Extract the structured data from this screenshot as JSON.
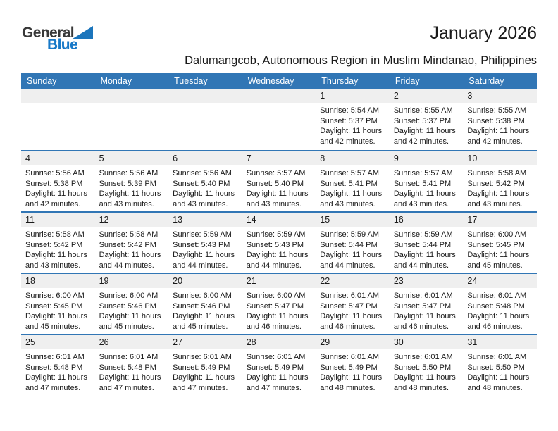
{
  "logo": {
    "part1": "General",
    "part2": "Blue"
  },
  "header": {
    "title": "January 2026",
    "subtitle": "Dalumangcob, Autonomous Region in Muslim Mindanao, Philippines"
  },
  "colors": {
    "accent_blue": "#3176B5",
    "band_gray": "#EFEFEF",
    "logo_dark": "#383838",
    "logo_blue": "#1879C8",
    "header_text": "#FFFFFF"
  },
  "calendar": {
    "weekday_headers": [
      "Sunday",
      "Monday",
      "Tuesday",
      "Wednesday",
      "Thursday",
      "Friday",
      "Saturday"
    ],
    "weeks": [
      [
        {
          "day": "",
          "sunrise": "",
          "sunset": "",
          "daylight1": "",
          "daylight2": ""
        },
        {
          "day": "",
          "sunrise": "",
          "sunset": "",
          "daylight1": "",
          "daylight2": ""
        },
        {
          "day": "",
          "sunrise": "",
          "sunset": "",
          "daylight1": "",
          "daylight2": ""
        },
        {
          "day": "",
          "sunrise": "",
          "sunset": "",
          "daylight1": "",
          "daylight2": ""
        },
        {
          "day": "1",
          "sunrise": "Sunrise: 5:54 AM",
          "sunset": "Sunset: 5:37 PM",
          "daylight1": "Daylight: 11 hours",
          "daylight2": "and 42 minutes."
        },
        {
          "day": "2",
          "sunrise": "Sunrise: 5:55 AM",
          "sunset": "Sunset: 5:37 PM",
          "daylight1": "Daylight: 11 hours",
          "daylight2": "and 42 minutes."
        },
        {
          "day": "3",
          "sunrise": "Sunrise: 5:55 AM",
          "sunset": "Sunset: 5:38 PM",
          "daylight1": "Daylight: 11 hours",
          "daylight2": "and 42 minutes."
        }
      ],
      [
        {
          "day": "4",
          "sunrise": "Sunrise: 5:56 AM",
          "sunset": "Sunset: 5:38 PM",
          "daylight1": "Daylight: 11 hours",
          "daylight2": "and 42 minutes."
        },
        {
          "day": "5",
          "sunrise": "Sunrise: 5:56 AM",
          "sunset": "Sunset: 5:39 PM",
          "daylight1": "Daylight: 11 hours",
          "daylight2": "and 43 minutes."
        },
        {
          "day": "6",
          "sunrise": "Sunrise: 5:56 AM",
          "sunset": "Sunset: 5:40 PM",
          "daylight1": "Daylight: 11 hours",
          "daylight2": "and 43 minutes."
        },
        {
          "day": "7",
          "sunrise": "Sunrise: 5:57 AM",
          "sunset": "Sunset: 5:40 PM",
          "daylight1": "Daylight: 11 hours",
          "daylight2": "and 43 minutes."
        },
        {
          "day": "8",
          "sunrise": "Sunrise: 5:57 AM",
          "sunset": "Sunset: 5:41 PM",
          "daylight1": "Daylight: 11 hours",
          "daylight2": "and 43 minutes."
        },
        {
          "day": "9",
          "sunrise": "Sunrise: 5:57 AM",
          "sunset": "Sunset: 5:41 PM",
          "daylight1": "Daylight: 11 hours",
          "daylight2": "and 43 minutes."
        },
        {
          "day": "10",
          "sunrise": "Sunrise: 5:58 AM",
          "sunset": "Sunset: 5:42 PM",
          "daylight1": "Daylight: 11 hours",
          "daylight2": "and 43 minutes."
        }
      ],
      [
        {
          "day": "11",
          "sunrise": "Sunrise: 5:58 AM",
          "sunset": "Sunset: 5:42 PM",
          "daylight1": "Daylight: 11 hours",
          "daylight2": "and 43 minutes."
        },
        {
          "day": "12",
          "sunrise": "Sunrise: 5:58 AM",
          "sunset": "Sunset: 5:42 PM",
          "daylight1": "Daylight: 11 hours",
          "daylight2": "and 44 minutes."
        },
        {
          "day": "13",
          "sunrise": "Sunrise: 5:59 AM",
          "sunset": "Sunset: 5:43 PM",
          "daylight1": "Daylight: 11 hours",
          "daylight2": "and 44 minutes."
        },
        {
          "day": "14",
          "sunrise": "Sunrise: 5:59 AM",
          "sunset": "Sunset: 5:43 PM",
          "daylight1": "Daylight: 11 hours",
          "daylight2": "and 44 minutes."
        },
        {
          "day": "15",
          "sunrise": "Sunrise: 5:59 AM",
          "sunset": "Sunset: 5:44 PM",
          "daylight1": "Daylight: 11 hours",
          "daylight2": "and 44 minutes."
        },
        {
          "day": "16",
          "sunrise": "Sunrise: 5:59 AM",
          "sunset": "Sunset: 5:44 PM",
          "daylight1": "Daylight: 11 hours",
          "daylight2": "and 44 minutes."
        },
        {
          "day": "17",
          "sunrise": "Sunrise: 6:00 AM",
          "sunset": "Sunset: 5:45 PM",
          "daylight1": "Daylight: 11 hours",
          "daylight2": "and 45 minutes."
        }
      ],
      [
        {
          "day": "18",
          "sunrise": "Sunrise: 6:00 AM",
          "sunset": "Sunset: 5:45 PM",
          "daylight1": "Daylight: 11 hours",
          "daylight2": "and 45 minutes."
        },
        {
          "day": "19",
          "sunrise": "Sunrise: 6:00 AM",
          "sunset": "Sunset: 5:46 PM",
          "daylight1": "Daylight: 11 hours",
          "daylight2": "and 45 minutes."
        },
        {
          "day": "20",
          "sunrise": "Sunrise: 6:00 AM",
          "sunset": "Sunset: 5:46 PM",
          "daylight1": "Daylight: 11 hours",
          "daylight2": "and 45 minutes."
        },
        {
          "day": "21",
          "sunrise": "Sunrise: 6:00 AM",
          "sunset": "Sunset: 5:47 PM",
          "daylight1": "Daylight: 11 hours",
          "daylight2": "and 46 minutes."
        },
        {
          "day": "22",
          "sunrise": "Sunrise: 6:01 AM",
          "sunset": "Sunset: 5:47 PM",
          "daylight1": "Daylight: 11 hours",
          "daylight2": "and 46 minutes."
        },
        {
          "day": "23",
          "sunrise": "Sunrise: 6:01 AM",
          "sunset": "Sunset: 5:47 PM",
          "daylight1": "Daylight: 11 hours",
          "daylight2": "and 46 minutes."
        },
        {
          "day": "24",
          "sunrise": "Sunrise: 6:01 AM",
          "sunset": "Sunset: 5:48 PM",
          "daylight1": "Daylight: 11 hours",
          "daylight2": "and 46 minutes."
        }
      ],
      [
        {
          "day": "25",
          "sunrise": "Sunrise: 6:01 AM",
          "sunset": "Sunset: 5:48 PM",
          "daylight1": "Daylight: 11 hours",
          "daylight2": "and 47 minutes."
        },
        {
          "day": "26",
          "sunrise": "Sunrise: 6:01 AM",
          "sunset": "Sunset: 5:48 PM",
          "daylight1": "Daylight: 11 hours",
          "daylight2": "and 47 minutes."
        },
        {
          "day": "27",
          "sunrise": "Sunrise: 6:01 AM",
          "sunset": "Sunset: 5:49 PM",
          "daylight1": "Daylight: 11 hours",
          "daylight2": "and 47 minutes."
        },
        {
          "day": "28",
          "sunrise": "Sunrise: 6:01 AM",
          "sunset": "Sunset: 5:49 PM",
          "daylight1": "Daylight: 11 hours",
          "daylight2": "and 47 minutes."
        },
        {
          "day": "29",
          "sunrise": "Sunrise: 6:01 AM",
          "sunset": "Sunset: 5:49 PM",
          "daylight1": "Daylight: 11 hours",
          "daylight2": "and 48 minutes."
        },
        {
          "day": "30",
          "sunrise": "Sunrise: 6:01 AM",
          "sunset": "Sunset: 5:50 PM",
          "daylight1": "Daylight: 11 hours",
          "daylight2": "and 48 minutes."
        },
        {
          "day": "31",
          "sunrise": "Sunrise: 6:01 AM",
          "sunset": "Sunset: 5:50 PM",
          "daylight1": "Daylight: 11 hours",
          "daylight2": "and 48 minutes."
        }
      ]
    ]
  }
}
